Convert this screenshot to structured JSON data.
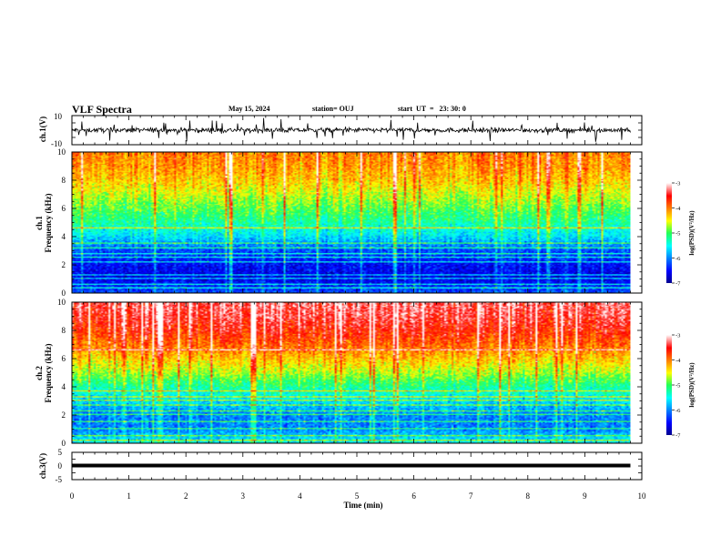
{
  "header": {
    "title": "VLF Spectra",
    "date": "May 15, 2024",
    "station": "station= OUJ",
    "start": "start  UT  =   23: 30: 0"
  },
  "chart_data": [
    {
      "type": "line",
      "panel": "ch1-waveform",
      "ylabel": "ch.1(V)",
      "ylim": [
        -10,
        10
      ],
      "y_tick_labels": [
        "10",
        "-10"
      ],
      "x_range_min": [
        0,
        9.8
      ],
      "baseline": 0,
      "note_values": "noisy trace around 0 V with spikes reaching about +/-7 V"
    },
    {
      "type": "heatmap",
      "panel": "ch1-spectrogram",
      "ylabel": "ch.1\nFrequency (kHz)",
      "ylabel_lines": [
        "ch.1",
        "Frequency (kHz)"
      ],
      "ylim_khz": [
        0,
        10
      ],
      "y_ticks": [
        0,
        2,
        4,
        6,
        8,
        10
      ],
      "x_range_min": [
        0,
        9.8
      ],
      "colorbar": {
        "label": "log(PSD)(V²/Hz)",
        "range": [
          -7,
          -3
        ],
        "ticks": [
          "-3",
          "-4",
          "-5",
          "-6",
          "-7"
        ]
      },
      "profile_khz_vs_log_psd": [
        [
          0,
          -6.2
        ],
        [
          1,
          -6.6
        ],
        [
          2,
          -6.5
        ],
        [
          3,
          -6.2
        ],
        [
          3.5,
          -5.9
        ],
        [
          4,
          -5.6
        ],
        [
          5,
          -5.2
        ],
        [
          6,
          -4.9
        ],
        [
          7,
          -4.6
        ],
        [
          8,
          -4.3
        ],
        [
          9,
          -4.1
        ],
        [
          10,
          -4.0
        ]
      ],
      "line_freqs_khz": [
        0.3,
        0.6,
        1.0,
        1.3,
        2.2,
        2.5,
        2.8,
        3.2,
        3.5,
        4.6
      ]
    },
    {
      "type": "heatmap",
      "panel": "ch2-spectrogram",
      "ylabel": "ch.2\nFrequency (kHz)",
      "ylabel_lines": [
        "ch.2",
        "Frequency (kHz)"
      ],
      "ylim_khz": [
        0,
        10
      ],
      "y_ticks": [
        0,
        2,
        4,
        6,
        8,
        10
      ],
      "x_range_min": [
        0,
        9.8
      ],
      "colorbar": {
        "label": "log(PSD)(V²/Hz)",
        "range": [
          -7,
          -3
        ],
        "ticks": [
          "-3",
          "-4",
          "-5",
          "-6",
          "-7"
        ]
      },
      "profile_khz_vs_log_psd": [
        [
          0,
          -5.5
        ],
        [
          1,
          -6.0
        ],
        [
          2,
          -6.0
        ],
        [
          3,
          -5.6
        ],
        [
          4,
          -5.2
        ],
        [
          5,
          -4.7
        ],
        [
          6,
          -4.3
        ],
        [
          7,
          -3.9
        ],
        [
          8,
          -3.6
        ],
        [
          9,
          -3.4
        ],
        [
          10,
          -3.3
        ]
      ],
      "line_freqs_khz": [
        0.2,
        0.5,
        1.0,
        1.5,
        2.0,
        2.3,
        2.7,
        3.0,
        3.3,
        3.7,
        6.6
      ]
    },
    {
      "type": "line",
      "panel": "ch3-waveform",
      "ylabel": "ch.3(V)",
      "ylim": [
        -5,
        5
      ],
      "y_tick_labels": [
        "5",
        "0",
        "-5"
      ],
      "x_range_min": [
        0,
        9.8
      ],
      "constant_value": 0,
      "xlabel": "Time  (min)",
      "xlim": [
        0,
        10
      ],
      "x_ticks": [
        0,
        1,
        2,
        3,
        4,
        5,
        6,
        7,
        8,
        9,
        10
      ]
    }
  ]
}
